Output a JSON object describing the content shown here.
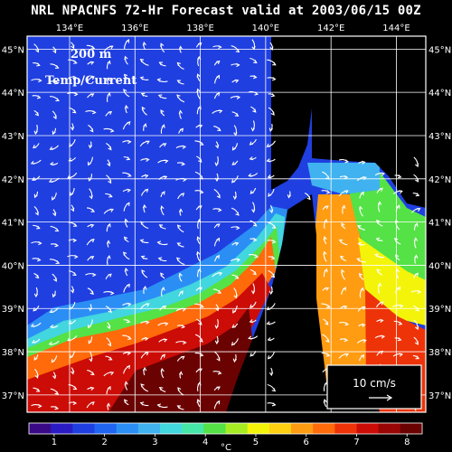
{
  "header": {
    "title": "NRL NPACNFS 72-Hr Forecast valid at 2003/06/15 00Z"
  },
  "map": {
    "depth_label": "200 m",
    "field_label": "Temp/Current",
    "lon_min": 132.7,
    "lon_max": 144.9,
    "lat_min": 36.6,
    "lat_max": 45.3,
    "lon_ticks": [
      "134°E",
      "136°E",
      "138°E",
      "140°E",
      "142°E",
      "144°E"
    ],
    "lon_tick_values": [
      134,
      136,
      138,
      140,
      142,
      144
    ],
    "lat_ticks": [
      "45°N",
      "44°N",
      "43°N",
      "42°N",
      "41°N",
      "40°N",
      "39°N",
      "38°N",
      "37°N"
    ],
    "lat_tick_values": [
      45,
      44,
      43,
      42,
      41,
      40,
      39,
      38,
      37
    ],
    "land_color": "#000000",
    "grid_color": "#ffffff",
    "vector_color": "#ffffff"
  },
  "scale_vector": {
    "label": "10 cm/s"
  },
  "colorbar": {
    "unit": "°C",
    "min": 0.5,
    "max": 8.3,
    "tick_labels": [
      "1",
      "2",
      "3",
      "4",
      "5",
      "6",
      "7",
      "8"
    ],
    "tick_values": [
      1,
      2,
      3,
      4,
      5,
      6,
      7,
      8
    ],
    "colors": [
      "#3a0a86",
      "#2b1bc4",
      "#1f3fe0",
      "#1f65f2",
      "#2b8ef5",
      "#3fb2ef",
      "#42d6df",
      "#46e6a8",
      "#54e246",
      "#a6ec22",
      "#f4f40a",
      "#ffd012",
      "#ff9c12",
      "#ff6a0a",
      "#ee3308",
      "#cc0c06",
      "#990404",
      "#6a0202"
    ]
  }
}
